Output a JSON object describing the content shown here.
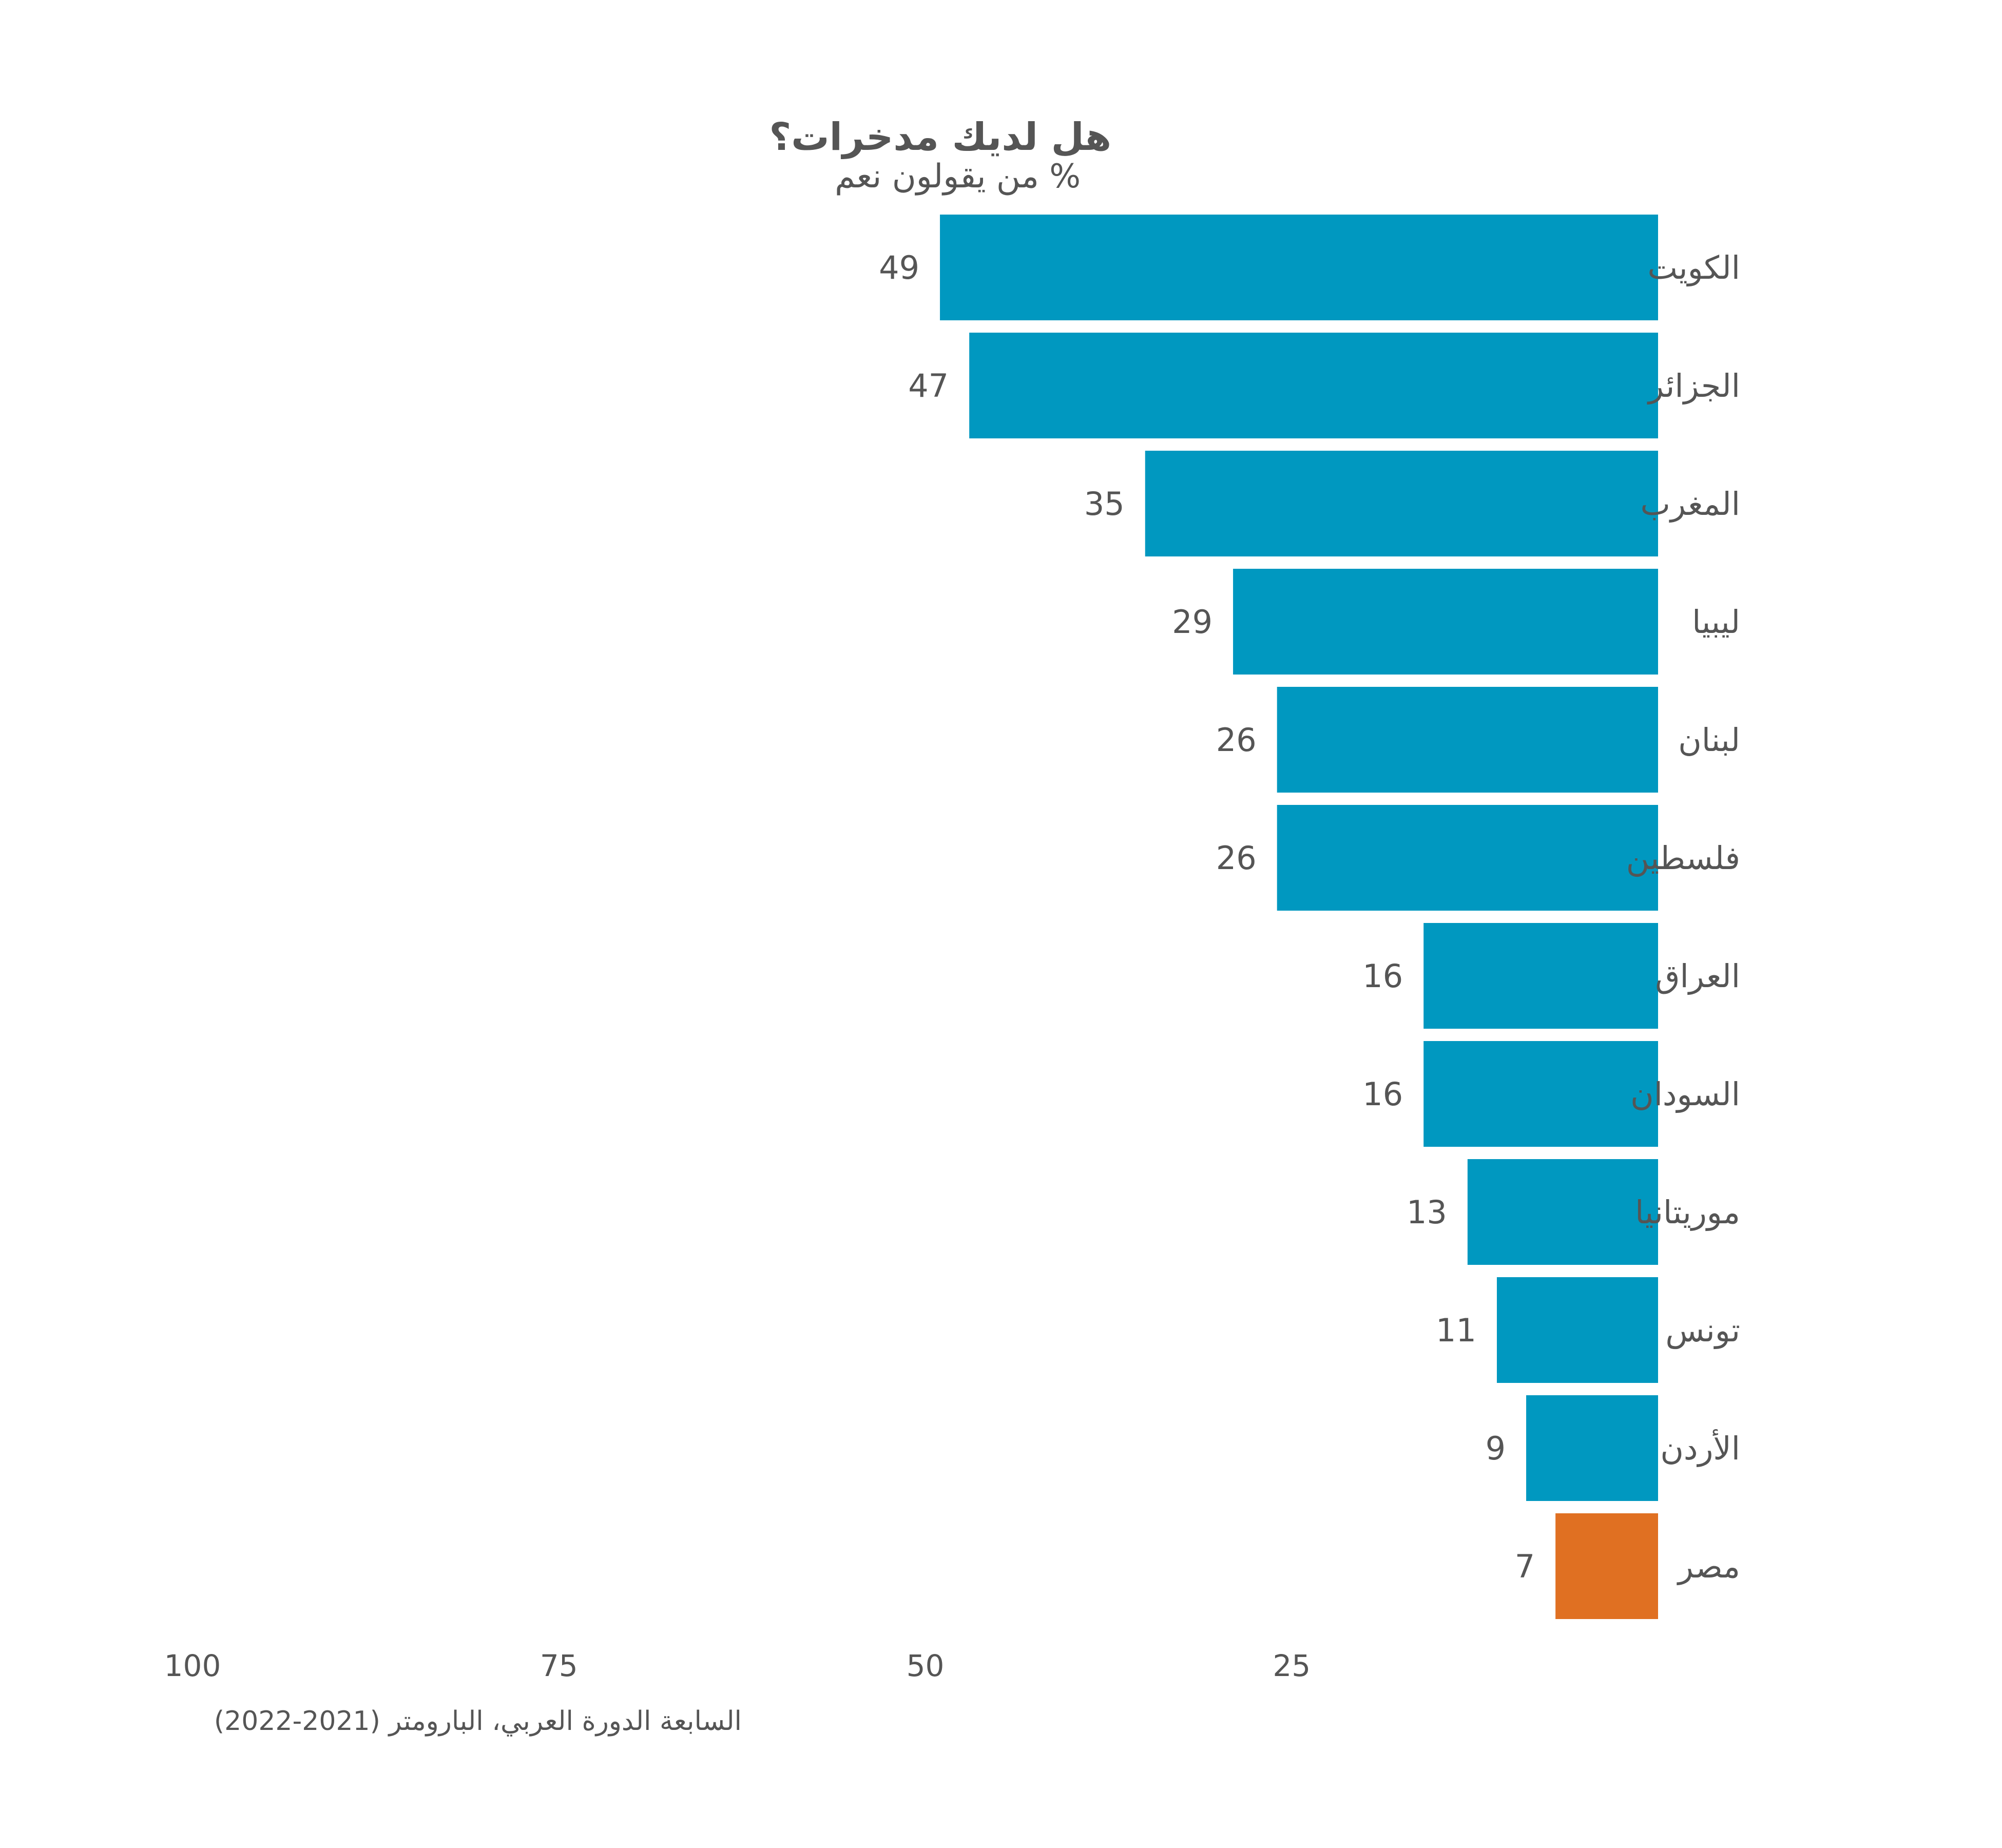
{
  "chart_data": {
    "type": "bar",
    "orientation": "horizontal",
    "title": "هل لديك مدخرات؟",
    "subtitle": "% من يقولون نعم",
    "source": "السابعة الدورة العربي، البارومتر (2021-2022)",
    "categories": [
      "الكويت",
      "الجزائر",
      "المغرب",
      "ليبيا",
      "لبنان",
      "فلسطين",
      "العراق",
      "السودان",
      "موريتانيا",
      "تونس",
      "الأردن",
      "مصر"
    ],
    "values": [
      49,
      47,
      35,
      29,
      26,
      26,
      16,
      16,
      13,
      11,
      9,
      7
    ],
    "highlight_category": "مصر",
    "xlim": [
      0,
      100
    ],
    "x_direction": "right-to-left",
    "xticks": [
      100,
      75,
      50,
      25
    ],
    "grid": false,
    "legend": "none",
    "colors": {
      "bar": "#0098c0",
      "highlight": "#e07022",
      "text": "#555555"
    }
  }
}
